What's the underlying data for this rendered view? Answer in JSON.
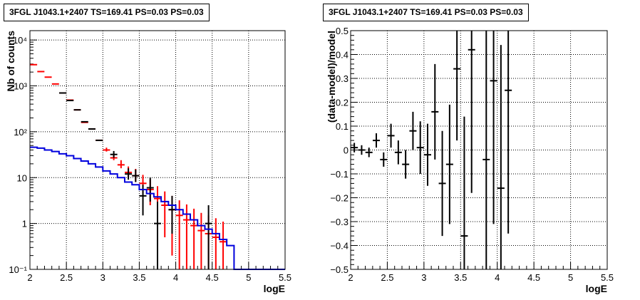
{
  "chart_data": [
    {
      "type": "scatter",
      "title": "3FGL J1043.1+2407 TS=169.41 PS=0.03 PS=0.03",
      "xlabel": "logE",
      "ylabel": "Nb of counts",
      "xlim": [
        2,
        5.5
      ],
      "ylim": [
        0.1,
        16000
      ],
      "yscale": "log",
      "grid": true,
      "x_ticks": [
        "2",
        "2.5",
        "3",
        "3.5",
        "4",
        "4.5",
        "5",
        "5.5"
      ],
      "y_ticks": [
        "10⁻¹",
        "1",
        "10",
        "10²",
        "10³",
        "10⁴"
      ],
      "series": [
        {
          "style": "red-points",
          "color": "#ff0000",
          "x": [
            2.05,
            2.15,
            2.25,
            2.35,
            2.45,
            2.55,
            2.65,
            2.75,
            2.85,
            2.95,
            3.05,
            3.15,
            3.25,
            3.35,
            3.45,
            3.55,
            3.65,
            3.75,
            3.85,
            3.95,
            4.05,
            4.15,
            4.25,
            4.35,
            4.45,
            4.55,
            4.65
          ],
          "y": [
            2900,
            2050,
            1550,
            1100,
            700,
            490,
            300,
            160,
            115,
            65,
            40,
            27,
            19,
            13,
            11,
            7.5,
            5.5,
            3.5,
            2.5,
            2.0,
            1.5,
            1.2,
            0.9,
            0.7,
            0.6,
            0.5,
            0.4
          ],
          "err_lo": [
            0,
            0,
            0,
            0,
            0,
            0,
            0,
            0,
            0,
            0,
            3,
            3,
            3,
            3,
            3,
            3,
            3,
            2.5,
            2.0,
            1.8,
            1.4,
            1.15,
            0.9,
            0.7,
            0.6,
            0.5,
            0.4
          ],
          "err_hi": [
            0,
            0,
            0,
            0,
            0,
            0,
            0,
            0,
            0,
            0,
            5,
            5,
            5,
            4.5,
            4.5,
            4,
            3.6,
            3.0,
            2.5,
            2.0,
            1.7,
            1.4,
            1.2,
            1.0,
            0.9,
            0.8,
            0.7
          ]
        },
        {
          "style": "black-points",
          "color": "#000000",
          "x": [
            2.45,
            2.55,
            2.65,
            2.75,
            2.85,
            2.95,
            3.15,
            3.35,
            3.45,
            3.55,
            3.65,
            3.75,
            3.95,
            4.45
          ],
          "y": [
            700,
            480,
            300,
            165,
            115,
            65,
            32,
            12,
            11,
            4,
            6,
            1,
            2,
            1
          ],
          "err_lo": [
            0,
            0,
            0,
            0,
            0,
            0,
            5,
            3,
            3,
            2.5,
            3,
            0.95,
            1.4,
            0.95
          ],
          "err_hi": [
            0,
            0,
            0,
            0,
            0,
            0,
            6,
            4,
            4,
            3,
            4,
            2,
            2,
            1.5
          ]
        },
        {
          "style": "blue-histogram",
          "color": "#0000dd",
          "x": [
            2.0,
            2.1,
            2.2,
            2.3,
            2.4,
            2.5,
            2.6,
            2.7,
            2.8,
            2.9,
            3.0,
            3.1,
            3.2,
            3.3,
            3.4,
            3.5,
            3.6,
            3.7,
            3.8,
            3.9,
            4.0,
            4.1,
            4.2,
            4.3,
            4.4,
            4.5,
            4.6,
            4.7,
            4.8,
            4.9,
            5.0,
            5.1,
            5.2,
            5.3,
            5.4
          ],
          "y": [
            46,
            44,
            40,
            37,
            33,
            30,
            26,
            23,
            20,
            17,
            14,
            12,
            10,
            8,
            7,
            5.5,
            4.5,
            3.8,
            3.0,
            2.5,
            2.0,
            1.6,
            1.2,
            0.9,
            0.75,
            0.6,
            0.45,
            0.33,
            0.1,
            0.1,
            0.1,
            0.1,
            0.1,
            0.1,
            0.1
          ]
        }
      ]
    },
    {
      "type": "scatter",
      "title": "3FGL J1043.1+2407 TS=169.41 PS=0.03 PS=0.03",
      "xlabel": "logE",
      "ylabel": "(data-model)/model",
      "xlim": [
        2,
        5.5
      ],
      "ylim": [
        -0.5,
        0.5
      ],
      "yscale": "linear",
      "grid": true,
      "x_ticks": [
        "2",
        "2.5",
        "3",
        "3.5",
        "4",
        "4.5",
        "5",
        "5.5"
      ],
      "y_ticks": [
        "−0.5",
        "−0.4",
        "−0.3",
        "−0.2",
        "−0.1",
        "0",
        "0.1",
        "0.2",
        "0.3",
        "0.4",
        "0.5"
      ],
      "series": [
        {
          "style": "black-points",
          "color": "#000000",
          "x": [
            2.05,
            2.15,
            2.25,
            2.35,
            2.45,
            2.55,
            2.65,
            2.75,
            2.85,
            2.95,
            3.05,
            3.15,
            3.25,
            3.35,
            3.45,
            3.55,
            3.65,
            3.85,
            3.95,
            4.05,
            4.15
          ],
          "y": [
            0.01,
            0.0,
            -0.01,
            0.04,
            -0.04,
            0.06,
            -0.01,
            -0.06,
            0.08,
            0.01,
            -0.02,
            0.16,
            -0.14,
            -0.06,
            0.34,
            -0.36,
            0.42,
            -0.04,
            0.29,
            -0.16,
            0.25
          ],
          "err": [
            0.02,
            0.02,
            0.02,
            0.03,
            0.03,
            0.05,
            0.05,
            0.06,
            0.08,
            0.11,
            0.13,
            0.2,
            0.22,
            0.25,
            0.3,
            0.5,
            0.6,
            0.6,
            0.6,
            0.6,
            0.6
          ]
        }
      ]
    }
  ]
}
